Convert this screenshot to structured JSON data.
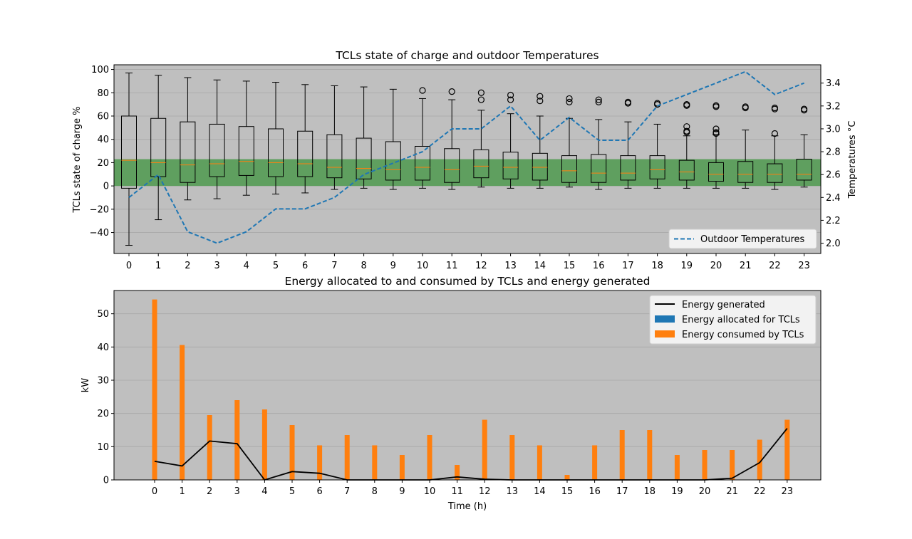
{
  "chart_data": [
    {
      "type": "box",
      "title": "TCLs state of charge and outdoor Temperatures",
      "xlabel": "",
      "ylabel": "TCLs state of charge %",
      "ylabel_right": "Temperatures °C",
      "x": [
        0,
        1,
        2,
        3,
        4,
        5,
        6,
        7,
        8,
        9,
        10,
        11,
        12,
        13,
        14,
        15,
        16,
        17,
        18,
        19,
        20,
        21,
        22,
        23
      ],
      "ylim": [
        -58,
        104
      ],
      "ylim_right": [
        1.91,
        3.56
      ],
      "yticks": [
        -40,
        -20,
        0,
        20,
        40,
        60,
        80,
        100
      ],
      "yticks_right": [
        2.0,
        2.2,
        2.4,
        2.6,
        2.8,
        3.0,
        3.2,
        3.4
      ],
      "grid": "horizontal",
      "band": {
        "from": 0,
        "to": 23,
        "color": "#5f9f5f"
      },
      "colors": {
        "background": "#bfbfbf",
        "box": "#000000",
        "median": "#ff7f0e",
        "temperature": "#1f77b4"
      },
      "boxes": [
        {
          "whislo": -51,
          "q1": -2,
          "med": 22,
          "q3": 60,
          "whishi": 97,
          "fliers": []
        },
        {
          "whislo": -29,
          "q1": 8,
          "med": 20,
          "q3": 58,
          "whishi": 95,
          "fliers": []
        },
        {
          "whislo": -12,
          "q1": 3,
          "med": 18,
          "q3": 55,
          "whishi": 93,
          "fliers": []
        },
        {
          "whislo": -11,
          "q1": 8,
          "med": 19,
          "q3": 53,
          "whishi": 91,
          "fliers": []
        },
        {
          "whislo": -8,
          "q1": 9,
          "med": 21,
          "q3": 51,
          "whishi": 90,
          "fliers": []
        },
        {
          "whislo": -7,
          "q1": 8,
          "med": 20,
          "q3": 49,
          "whishi": 89,
          "fliers": []
        },
        {
          "whislo": -6,
          "q1": 8,
          "med": 19,
          "q3": 47,
          "whishi": 87,
          "fliers": []
        },
        {
          "whislo": -3,
          "q1": 7,
          "med": 16,
          "q3": 44,
          "whishi": 86,
          "fliers": []
        },
        {
          "whislo": -2,
          "q1": 6,
          "med": 15,
          "q3": 41,
          "whishi": 85,
          "fliers": []
        },
        {
          "whislo": -3,
          "q1": 5,
          "med": 14,
          "q3": 38,
          "whishi": 83,
          "fliers": []
        },
        {
          "whislo": -2,
          "q1": 5,
          "med": 16,
          "q3": 34,
          "whishi": 75,
          "fliers": [
            82
          ]
        },
        {
          "whislo": -3,
          "q1": 3,
          "med": 14,
          "q3": 32,
          "whishi": 74,
          "fliers": [
            81
          ]
        },
        {
          "whislo": -1,
          "q1": 7,
          "med": 17,
          "q3": 31,
          "whishi": 65,
          "fliers": [
            74,
            80
          ]
        },
        {
          "whislo": -2,
          "q1": 6,
          "med": 16,
          "q3": 29,
          "whishi": 62,
          "fliers": [
            74,
            78
          ]
        },
        {
          "whislo": -2,
          "q1": 5,
          "med": 16,
          "q3": 28,
          "whishi": 60,
          "fliers": [
            73,
            77
          ]
        },
        {
          "whislo": -1,
          "q1": 3,
          "med": 13,
          "q3": 26,
          "whishi": 58,
          "fliers": [
            72,
            75
          ]
        },
        {
          "whislo": -3,
          "q1": 3,
          "med": 11,
          "q3": 27,
          "whishi": 57,
          "fliers": [
            72,
            74
          ]
        },
        {
          "whislo": -2,
          "q1": 5,
          "med": 11,
          "q3": 26,
          "whishi": 55,
          "fliers": [
            71,
            72
          ]
        },
        {
          "whislo": -2,
          "q1": 6,
          "med": 14,
          "q3": 26,
          "whishi": 53,
          "fliers": [
            70,
            71
          ]
        },
        {
          "whislo": -2,
          "q1": 5,
          "med": 12,
          "q3": 22,
          "whishi": 43,
          "fliers": [
            46,
            47,
            51,
            69,
            70
          ]
        },
        {
          "whislo": -2,
          "q1": 4,
          "med": 10,
          "q3": 20,
          "whishi": 44,
          "fliers": [
            45,
            46,
            49,
            68,
            69
          ]
        },
        {
          "whislo": -2,
          "q1": 3,
          "med": 10,
          "q3": 21,
          "whishi": 48,
          "fliers": [
            67,
            68
          ]
        },
        {
          "whislo": -3,
          "q1": 3,
          "med": 10,
          "q3": 19,
          "whishi": 43,
          "fliers": [
            45,
            66,
            67
          ]
        },
        {
          "whislo": -1,
          "q1": 5,
          "med": 10,
          "q3": 23,
          "whishi": 44,
          "fliers": [
            65,
            66
          ]
        }
      ],
      "series": [
        {
          "name": "Outdoor Temperatures",
          "axis": "right",
          "style": "dashed",
          "values": [
            2.4,
            2.6,
            2.1,
            2.0,
            2.1,
            2.3,
            2.3,
            2.4,
            2.6,
            2.7,
            2.8,
            3.0,
            3.0,
            3.2,
            2.9,
            3.1,
            2.9,
            2.9,
            3.2,
            3.3,
            3.4,
            3.5,
            3.3,
            3.4
          ]
        }
      ],
      "legend": "lower-right"
    },
    {
      "type": "bar+line",
      "title": "Energy allocated to and consumed by TCLs and energy generated",
      "xlabel": "Time (h)",
      "ylabel": "kW",
      "x": [
        0,
        1,
        2,
        3,
        4,
        5,
        6,
        7,
        8,
        9,
        10,
        11,
        12,
        13,
        14,
        15,
        16,
        17,
        18,
        19,
        20,
        21,
        22,
        23
      ],
      "ylim": [
        0,
        57
      ],
      "yticks": [
        0,
        10,
        20,
        30,
        40,
        50
      ],
      "grid": "horizontal",
      "colors": {
        "background": "#bfbfbf",
        "generated": "#000000",
        "allocated": "#1f77b4",
        "consumed": "#ff7f0e"
      },
      "series": [
        {
          "name": "Energy generated",
          "kind": "line",
          "values": [
            5.6,
            4.2,
            11.7,
            10.9,
            0.0,
            2.5,
            2.0,
            0.0,
            0.0,
            0.0,
            0.0,
            0.9,
            0.2,
            0.0,
            0.0,
            0.0,
            0.0,
            0.0,
            0.0,
            0.0,
            0.0,
            0.5,
            5.2,
            15.5
          ]
        },
        {
          "name": "Energy allocated for TCLs",
          "kind": "bar",
          "values": [
            0,
            0,
            0,
            0,
            0,
            0,
            0,
            0,
            0,
            0,
            0,
            0,
            0,
            0,
            0,
            0,
            0,
            0,
            0,
            0,
            0,
            0,
            0,
            0
          ]
        },
        {
          "name": "Energy consumed by TCLs",
          "kind": "bar",
          "values": [
            54.3,
            40.6,
            19.5,
            24.0,
            21.2,
            16.5,
            10.4,
            13.5,
            10.4,
            7.5,
            13.5,
            4.5,
            18.1,
            13.5,
            10.4,
            1.5,
            10.4,
            15.0,
            15.0,
            7.5,
            9.0,
            9.0,
            12.1,
            18.1
          ]
        }
      ],
      "legend": "top-right"
    }
  ]
}
